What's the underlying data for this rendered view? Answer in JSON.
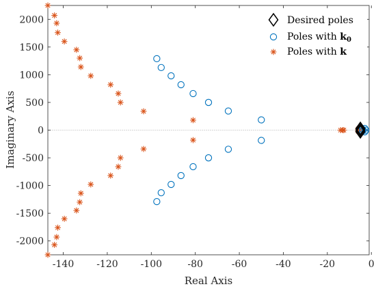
{
  "chart_data": {
    "type": "scatter",
    "title": "",
    "xlabel": "Real Axis",
    "ylabel": "Imaginary Axis",
    "xlim": [
      -147,
      -1
    ],
    "ylim": [
      -2250,
      2250
    ],
    "xticks": [
      -140,
      -120,
      -100,
      -80,
      -60,
      -40,
      -20,
      0
    ],
    "yticks": [
      -2000,
      -1500,
      -1000,
      -500,
      0,
      500,
      1000,
      1500,
      2000
    ],
    "tick_labels_x": [
      "-140",
      "-120",
      "-100",
      "-80",
      "-60",
      "-40",
      "-20",
      "0"
    ],
    "tick_labels_y": [
      "-2000",
      "-1500",
      "-1000",
      "-500",
      "0",
      "500",
      "1000",
      "1500",
      "2000"
    ],
    "zero_line": true,
    "grid": false,
    "legend": {
      "position": "top-right",
      "items": [
        {
          "label": "Desired poles",
          "label_main": "Desired poles",
          "label_bold": "",
          "label_sub": ""
        },
        {
          "label": "Poles with k0",
          "label_main": "Poles with ",
          "label_bold": "k",
          "label_sub": "0"
        },
        {
          "label": "Poles with k",
          "label_main": "Poles with ",
          "label_bold": "k",
          "label_sub": ""
        }
      ]
    },
    "series": [
      {
        "name": "Desired poles",
        "marker": "diamond",
        "color": "#000000",
        "points": [
          [
            -5,
            30
          ],
          [
            -5,
            -30
          ],
          [
            -5,
            0
          ]
        ]
      },
      {
        "name": "Poles with k0",
        "marker": "circle",
        "color": "#0072BD",
        "points": [
          [
            -97.5,
            1290
          ],
          [
            -95.5,
            1130
          ],
          [
            -91,
            980
          ],
          [
            -86.5,
            820
          ],
          [
            -81,
            660
          ],
          [
            -74,
            500
          ],
          [
            -65,
            345
          ],
          [
            -50,
            185
          ],
          [
            -97.5,
            -1290
          ],
          [
            -95.5,
            -1130
          ],
          [
            -91,
            -980
          ],
          [
            -86.5,
            -820
          ],
          [
            -81,
            -660
          ],
          [
            -74,
            -500
          ],
          [
            -65,
            -345
          ],
          [
            -50,
            -185
          ],
          [
            -3,
            30
          ],
          [
            -3,
            -30
          ],
          [
            -2.5,
            0
          ],
          [
            -4,
            15
          ],
          [
            -4,
            -15
          ]
        ]
      },
      {
        "name": "Poles with k",
        "marker": "asterisk",
        "color": "#D95319",
        "points": [
          [
            -147,
            2250
          ],
          [
            -144,
            2070
          ],
          [
            -143,
            1930
          ],
          [
            -142.5,
            1760
          ],
          [
            -139.5,
            1600
          ],
          [
            -134,
            1450
          ],
          [
            -132.5,
            1300
          ],
          [
            -132,
            1140
          ],
          [
            -127.5,
            980
          ],
          [
            -118.5,
            820
          ],
          [
            -115,
            660
          ],
          [
            -114,
            500
          ],
          [
            -103.5,
            340
          ],
          [
            -81,
            180
          ],
          [
            -147,
            -2250
          ],
          [
            -144,
            -2070
          ],
          [
            -143,
            -1930
          ],
          [
            -142.5,
            -1760
          ],
          [
            -139.5,
            -1600
          ],
          [
            -134,
            -1450
          ],
          [
            -132.5,
            -1300
          ],
          [
            -132,
            -1140
          ],
          [
            -127.5,
            -980
          ],
          [
            -118.5,
            -820
          ],
          [
            -115,
            -660
          ],
          [
            -114,
            -500
          ],
          [
            -103.5,
            -340
          ],
          [
            -81,
            -180
          ],
          [
            -14,
            0
          ],
          [
            -13,
            0
          ],
          [
            -12.5,
            0
          ],
          [
            -6,
            20
          ],
          [
            -6,
            -20
          ],
          [
            -5,
            10
          ]
        ]
      }
    ]
  }
}
